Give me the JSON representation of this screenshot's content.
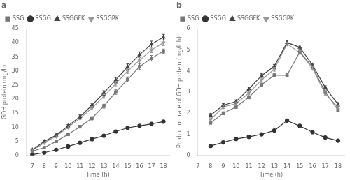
{
  "chart_data": [
    {
      "type": "line",
      "title": "a",
      "x": [
        7,
        8,
        9,
        10,
        11,
        12,
        13,
        14,
        15,
        16,
        17,
        18
      ],
      "series": [
        {
          "name": "SSG",
          "color": "#777777",
          "marker": "square",
          "values": [
            1.5,
            2.8,
            5.0,
            7.5,
            10.2,
            13.2,
            17.5,
            22.5,
            27.0,
            31.5,
            34.5,
            37.0
          ],
          "errors": [
            0.2,
            0.3,
            0.4,
            0.5,
            0.5,
            0.6,
            0.7,
            0.8,
            0.9,
            1.0,
            1.0,
            0.8
          ]
        },
        {
          "name": "SSGG",
          "color": "#333333",
          "marker": "circle",
          "values": [
            0.3,
            1.0,
            2.0,
            3.2,
            4.5,
            5.8,
            7.0,
            8.5,
            9.8,
            10.5,
            11.2,
            12.0
          ],
          "errors": [
            0.1,
            0.1,
            0.2,
            0.2,
            0.2,
            0.3,
            0.3,
            0.3,
            0.3,
            0.3,
            0.3,
            0.3
          ]
        },
        {
          "name": "SSGGFK",
          "color": "#444444",
          "marker": "triangle_up",
          "values": [
            2.0,
            5.0,
            7.2,
            10.5,
            13.8,
            17.8,
            22.2,
            26.8,
            31.5,
            35.8,
            39.5,
            42.0
          ],
          "errors": [
            0.2,
            0.3,
            0.4,
            0.5,
            0.6,
            0.7,
            0.8,
            0.9,
            1.0,
            1.0,
            1.1,
            1.0
          ]
        },
        {
          "name": "SSGGPK",
          "color": "#999999",
          "marker": "triangle_down",
          "values": [
            1.8,
            4.5,
            6.8,
            10.0,
            13.2,
            16.8,
            21.0,
            25.5,
            30.0,
            33.8,
            37.5,
            40.0
          ],
          "errors": [
            0.2,
            0.3,
            0.4,
            0.5,
            0.5,
            0.6,
            0.7,
            0.8,
            0.9,
            1.0,
            1.0,
            1.0
          ]
        }
      ],
      "xlabel": "Time (h)",
      "ylabel": "GDH protein (mg/L)",
      "xlim": [
        6.5,
        18.5
      ],
      "ylim": [
        0,
        45
      ],
      "xticks": [
        7,
        8,
        9,
        10,
        11,
        12,
        13,
        14,
        15,
        16,
        17,
        18
      ],
      "yticks": [
        0,
        5,
        10,
        15,
        20,
        25,
        30,
        35,
        40,
        45
      ],
      "grid": false,
      "legend": "upper left"
    },
    {
      "type": "line",
      "title": "b",
      "x": [
        8,
        9,
        10,
        11,
        12,
        13,
        14,
        15,
        16,
        17,
        18
      ],
      "series": [
        {
          "name": "SSG",
          "color": "#777777",
          "marker": "square",
          "values": [
            1.55,
            2.0,
            2.3,
            2.75,
            3.35,
            3.8,
            3.8,
            4.9,
            4.2,
            3.0,
            2.15
          ],
          "errors": [
            0.07,
            0.07,
            0.07,
            0.07,
            0.08,
            0.08,
            0.08,
            0.09,
            0.08,
            0.07,
            0.07
          ]
        },
        {
          "name": "SSGG",
          "color": "#333333",
          "marker": "circle",
          "values": [
            0.45,
            0.62,
            0.78,
            0.88,
            1.0,
            1.18,
            1.65,
            1.4,
            1.1,
            0.85,
            0.7
          ],
          "errors": [
            0.03,
            0.03,
            0.03,
            0.03,
            0.04,
            0.04,
            0.05,
            0.04,
            0.04,
            0.03,
            0.03
          ]
        },
        {
          "name": "SSGGFK",
          "color": "#444444",
          "marker": "triangle_up",
          "values": [
            1.9,
            2.38,
            2.55,
            3.15,
            3.78,
            4.22,
            5.35,
            5.12,
            4.28,
            3.22,
            2.42
          ],
          "errors": [
            0.08,
            0.08,
            0.08,
            0.09,
            0.09,
            0.09,
            0.1,
            0.1,
            0.09,
            0.08,
            0.08
          ]
        },
        {
          "name": "SSGGPK",
          "color": "#999999",
          "marker": "triangle_down",
          "values": [
            1.7,
            2.3,
            2.45,
            2.95,
            3.58,
            4.08,
            5.28,
            4.88,
            4.12,
            2.92,
            2.28
          ],
          "errors": [
            0.08,
            0.08,
            0.08,
            0.08,
            0.09,
            0.09,
            0.09,
            0.09,
            0.08,
            0.08,
            0.07
          ]
        }
      ],
      "xlabel": "Time (h)",
      "ylabel": "Production rate of GDH protein (mg/L·h)",
      "xlim": [
        7,
        18.5
      ],
      "ylim": [
        0,
        6
      ],
      "xticks": [
        7,
        8,
        9,
        10,
        11,
        12,
        13,
        14,
        15,
        16,
        17,
        18
      ],
      "yticks": [
        0,
        1,
        2,
        3,
        4,
        5,
        6
      ],
      "grid": false,
      "legend": "upper left"
    }
  ]
}
